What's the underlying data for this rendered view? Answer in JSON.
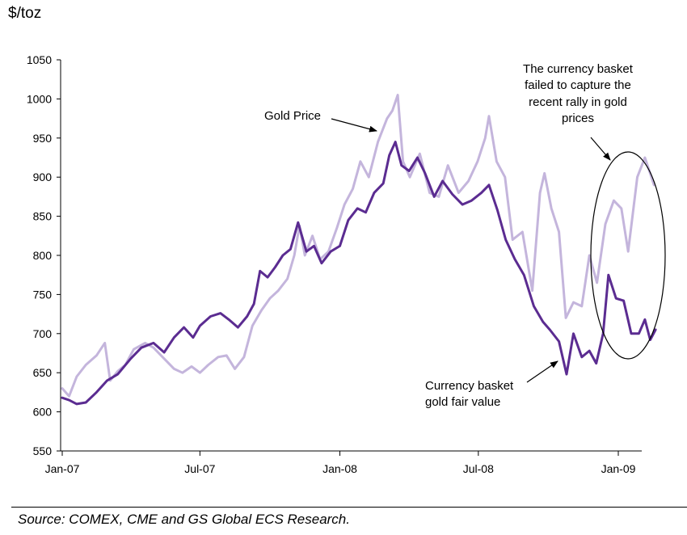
{
  "chart_data": {
    "type": "line",
    "unit_label": "$/toz",
    "xlabel": "",
    "ylabel": "$/toz",
    "ylim": [
      550,
      1050
    ],
    "yticks": [
      550,
      600,
      650,
      700,
      750,
      800,
      850,
      900,
      950,
      1000,
      1050
    ],
    "xlim": [
      "2007-01-01",
      "2009-02-20"
    ],
    "xticks": [
      {
        "date": "2007-01-01",
        "label": "Jan-07"
      },
      {
        "date": "2007-07-01",
        "label": "Jul-07"
      },
      {
        "date": "2008-01-01",
        "label": "Jan-08"
      },
      {
        "date": "2008-07-01",
        "label": "Jul-08"
      },
      {
        "date": "2009-01-01",
        "label": "Jan-09"
      }
    ],
    "grid": false,
    "legend": "none",
    "series": [
      {
        "name": "Gold Price",
        "color": "#c4b5dc",
        "points": [
          [
            "2007-01-01",
            630
          ],
          [
            "2007-01-10",
            620
          ],
          [
            "2007-01-20",
            645
          ],
          [
            "2007-02-01",
            660
          ],
          [
            "2007-02-15",
            672
          ],
          [
            "2007-02-26",
            688
          ],
          [
            "2007-03-05",
            640
          ],
          [
            "2007-03-15",
            652
          ],
          [
            "2007-03-25",
            660
          ],
          [
            "2007-04-05",
            680
          ],
          [
            "2007-04-20",
            688
          ],
          [
            "2007-05-01",
            682
          ],
          [
            "2007-05-15",
            668
          ],
          [
            "2007-05-28",
            655
          ],
          [
            "2007-06-08",
            650
          ],
          [
            "2007-06-20",
            658
          ],
          [
            "2007-07-01",
            650
          ],
          [
            "2007-07-12",
            660
          ],
          [
            "2007-07-25",
            670
          ],
          [
            "2007-08-05",
            672
          ],
          [
            "2007-08-16",
            655
          ],
          [
            "2007-08-28",
            670
          ],
          [
            "2007-09-08",
            710
          ],
          [
            "2007-09-20",
            730
          ],
          [
            "2007-10-01",
            745
          ],
          [
            "2007-10-12",
            755
          ],
          [
            "2007-10-24",
            770
          ],
          [
            "2007-11-02",
            800
          ],
          [
            "2007-11-09",
            838
          ],
          [
            "2007-11-16",
            800
          ],
          [
            "2007-11-26",
            825
          ],
          [
            "2007-12-06",
            795
          ],
          [
            "2007-12-17",
            805
          ],
          [
            "2007-12-28",
            835
          ],
          [
            "2008-01-07",
            865
          ],
          [
            "2008-01-18",
            885
          ],
          [
            "2008-01-28",
            920
          ],
          [
            "2008-02-08",
            900
          ],
          [
            "2008-02-20",
            945
          ],
          [
            "2008-03-03",
            975
          ],
          [
            "2008-03-10",
            985
          ],
          [
            "2008-03-17",
            1005
          ],
          [
            "2008-03-24",
            920
          ],
          [
            "2008-04-02",
            900
          ],
          [
            "2008-04-15",
            930
          ],
          [
            "2008-04-28",
            880
          ],
          [
            "2008-05-10",
            875
          ],
          [
            "2008-05-22",
            915
          ],
          [
            "2008-06-05",
            880
          ],
          [
            "2008-06-18",
            895
          ],
          [
            "2008-06-30",
            920
          ],
          [
            "2008-07-10",
            950
          ],
          [
            "2008-07-15",
            978
          ],
          [
            "2008-07-25",
            920
          ],
          [
            "2008-08-05",
            900
          ],
          [
            "2008-08-15",
            820
          ],
          [
            "2008-08-28",
            830
          ],
          [
            "2008-09-10",
            755
          ],
          [
            "2008-09-20",
            880
          ],
          [
            "2008-09-26",
            905
          ],
          [
            "2008-10-05",
            860
          ],
          [
            "2008-10-15",
            830
          ],
          [
            "2008-10-24",
            720
          ],
          [
            "2008-11-03",
            740
          ],
          [
            "2008-11-14",
            735
          ],
          [
            "2008-11-24",
            800
          ],
          [
            "2008-12-04",
            765
          ],
          [
            "2008-12-15",
            840
          ],
          [
            "2008-12-26",
            870
          ],
          [
            "2009-01-05",
            860
          ],
          [
            "2009-01-14",
            805
          ],
          [
            "2009-01-26",
            900
          ],
          [
            "2009-02-05",
            925
          ],
          [
            "2009-02-17",
            890
          ]
        ]
      },
      {
        "name": "Currency basket gold fair value",
        "color": "#5b2c91",
        "points": [
          [
            "2007-01-01",
            618
          ],
          [
            "2007-01-10",
            615
          ],
          [
            "2007-01-20",
            610
          ],
          [
            "2007-02-01",
            612
          ],
          [
            "2007-02-15",
            625
          ],
          [
            "2007-03-01",
            640
          ],
          [
            "2007-03-15",
            648
          ],
          [
            "2007-04-01",
            668
          ],
          [
            "2007-04-15",
            682
          ],
          [
            "2007-05-01",
            688
          ],
          [
            "2007-05-15",
            676
          ],
          [
            "2007-05-28",
            695
          ],
          [
            "2007-06-10",
            708
          ],
          [
            "2007-06-22",
            695
          ],
          [
            "2007-07-01",
            710
          ],
          [
            "2007-07-15",
            722
          ],
          [
            "2007-07-28",
            726
          ],
          [
            "2007-08-08",
            718
          ],
          [
            "2007-08-20",
            708
          ],
          [
            "2007-09-01",
            722
          ],
          [
            "2007-09-10",
            738
          ],
          [
            "2007-09-18",
            780
          ],
          [
            "2007-09-28",
            772
          ],
          [
            "2007-10-08",
            785
          ],
          [
            "2007-10-18",
            800
          ],
          [
            "2007-10-28",
            808
          ],
          [
            "2007-11-07",
            842
          ],
          [
            "2007-11-18",
            805
          ],
          [
            "2007-11-28",
            812
          ],
          [
            "2007-12-08",
            790
          ],
          [
            "2007-12-20",
            805
          ],
          [
            "2008-01-01",
            812
          ],
          [
            "2008-01-12",
            845
          ],
          [
            "2008-01-24",
            860
          ],
          [
            "2008-02-04",
            855
          ],
          [
            "2008-02-15",
            880
          ],
          [
            "2008-02-27",
            892
          ],
          [
            "2008-03-06",
            928
          ],
          [
            "2008-03-14",
            945
          ],
          [
            "2008-03-22",
            915
          ],
          [
            "2008-04-01",
            908
          ],
          [
            "2008-04-12",
            925
          ],
          [
            "2008-04-22",
            905
          ],
          [
            "2008-05-04",
            875
          ],
          [
            "2008-05-15",
            895
          ],
          [
            "2008-05-28",
            878
          ],
          [
            "2008-06-10",
            865
          ],
          [
            "2008-06-22",
            870
          ],
          [
            "2008-07-05",
            880
          ],
          [
            "2008-07-15",
            890
          ],
          [
            "2008-07-26",
            858
          ],
          [
            "2008-08-06",
            820
          ],
          [
            "2008-08-18",
            795
          ],
          [
            "2008-08-30",
            775
          ],
          [
            "2008-09-12",
            735
          ],
          [
            "2008-09-24",
            715
          ],
          [
            "2008-10-03",
            705
          ],
          [
            "2008-10-15",
            690
          ],
          [
            "2008-10-25",
            648
          ],
          [
            "2008-11-03",
            700
          ],
          [
            "2008-11-14",
            670
          ],
          [
            "2008-11-24",
            678
          ],
          [
            "2008-12-03",
            662
          ],
          [
            "2008-12-12",
            700
          ],
          [
            "2008-12-19",
            775
          ],
          [
            "2008-12-29",
            745
          ],
          [
            "2009-01-08",
            742
          ],
          [
            "2009-01-18",
            700
          ],
          [
            "2009-01-28",
            700
          ],
          [
            "2009-02-05",
            718
          ],
          [
            "2009-02-12",
            692
          ],
          [
            "2009-02-19",
            705
          ]
        ]
      }
    ],
    "annotations": {
      "gold_price": "Gold Price",
      "fair_value_line1": "Currency basket",
      "fair_value_line2": "gold fair value",
      "note_line1": "The currency basket",
      "note_line2": "failed to capture the",
      "note_line3": "recent rally in gold",
      "note_line4": "prices"
    }
  },
  "source": "Source: COMEX, CME and GS Global ECS Research."
}
